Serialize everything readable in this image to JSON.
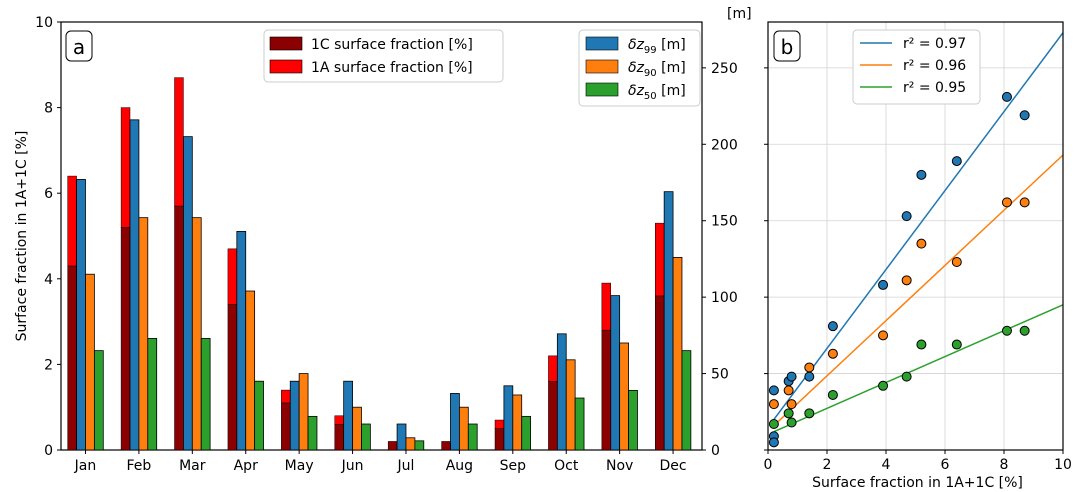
{
  "chart_data": [
    {
      "panel": "a",
      "type": "bar",
      "ylabel": "Surface fraction in 1A+1C [%]",
      "right_axis_unit": "[m]",
      "ylim": [
        0,
        10
      ],
      "right_ylim": [
        0,
        280
      ],
      "categories": [
        "Jan",
        "Feb",
        "Mar",
        "Apr",
        "May",
        "Jun",
        "Jul",
        "Aug",
        "Sep",
        "Oct",
        "Nov",
        "Dec"
      ],
      "yticks": [
        0,
        2,
        4,
        6,
        8,
        10
      ],
      "right_yticks": [
        0,
        50,
        100,
        150,
        200,
        250
      ],
      "legend_left": [
        {
          "label": "1C surface fraction [%]",
          "color": "#8b0000"
        },
        {
          "label": "1A surface fraction [%]",
          "color": "#ff0000"
        }
      ],
      "legend_right": [
        {
          "label": "δz",
          "sub": "99",
          "unit": " [m]",
          "color": "#1f77b4"
        },
        {
          "label": "δz",
          "sub": "90",
          "unit": " [m]",
          "color": "#ff7f0e"
        },
        {
          "label": "δz",
          "sub": "50",
          "unit": " [m]",
          "color": "#2ca02c"
        }
      ],
      "series": [
        {
          "name": "1C surface fraction [%]",
          "color": "#8b0000",
          "values": [
            4.3,
            5.2,
            5.7,
            3.4,
            1.1,
            0.6,
            0.2,
            0.2,
            0.5,
            1.6,
            2.8,
            3.6
          ]
        },
        {
          "name": "1A surface fraction [%]",
          "color": "#ff0000",
          "values": [
            2.1,
            2.8,
            3.0,
            1.3,
            0.3,
            0.2,
            0.0,
            0.0,
            0.2,
            0.6,
            1.1,
            1.7
          ]
        },
        {
          "name": "δz99 [m]",
          "color": "#1f77b4",
          "values": [
            177,
            216,
            205,
            143,
            45,
            45,
            17,
            37,
            42,
            76,
            101,
            169
          ]
        },
        {
          "name": "δz90 [m]",
          "color": "#ff7f0e",
          "values": [
            115,
            152,
            152,
            104,
            50,
            28,
            8,
            28,
            36,
            59,
            70,
            126
          ]
        },
        {
          "name": "δz50 [m]",
          "color": "#2ca02c",
          "values": [
            65,
            73,
            73,
            45,
            22,
            17,
            6,
            17,
            22,
            34,
            39,
            65
          ]
        }
      ]
    },
    {
      "panel": "b",
      "type": "scatter",
      "xlabel": "Surface fraction in 1A+1C [%]",
      "ylabel": "[m]",
      "xlim": [
        0,
        10
      ],
      "ylim": [
        0,
        280
      ],
      "xticks": [
        0,
        2,
        4,
        6,
        8,
        10
      ],
      "yticks": [
        0,
        50,
        100,
        150,
        200,
        250
      ],
      "grid": true,
      "legend_position": "top",
      "series": [
        {
          "legend": "r² = 0.97",
          "color": "#1f77b4",
          "x": [
            0.2,
            0.7,
            0.8,
            1.4,
            2.2,
            3.9,
            4.7,
            5.2,
            6.4,
            8.1,
            8.7
          ],
          "y": [
            39,
            45,
            48,
            48,
            81,
            108,
            153,
            180,
            189,
            231,
            219
          ],
          "fit": [
            [
              0.2,
              20
            ],
            [
              10,
              273
            ]
          ]
        },
        {
          "legend": "r² = 0.96",
          "color": "#ff7f0e",
          "x": [
            0.2,
            0.7,
            0.8,
            1.4,
            2.2,
            3.9,
            4.7,
            5.2,
            6.4,
            8.1,
            8.7
          ],
          "y": [
            30,
            39,
            30,
            54,
            63,
            75,
            111,
            135,
            123,
            162,
            162
          ],
          "fit": [
            [
              0.2,
              16
            ],
            [
              10,
              193
            ]
          ]
        },
        {
          "legend": "r² = 0.95",
          "color": "#2ca02c",
          "x": [
            0.2,
            0.7,
            0.8,
            1.4,
            2.2,
            3.9,
            4.7,
            5.2,
            6.4,
            8.1,
            8.7
          ],
          "y": [
            17,
            24,
            18,
            24,
            36,
            42,
            48,
            69,
            69,
            78,
            78
          ],
          "fit": [
            [
              0.2,
              12
            ],
            [
              10,
              95
            ]
          ]
        },
        {
          "legend": "",
          "color": "#1f77b4",
          "note": "overlapping low points near origin",
          "x": [
            0.2,
            0.2
          ],
          "y": [
            9,
            5
          ],
          "fit": null
        }
      ]
    }
  ]
}
